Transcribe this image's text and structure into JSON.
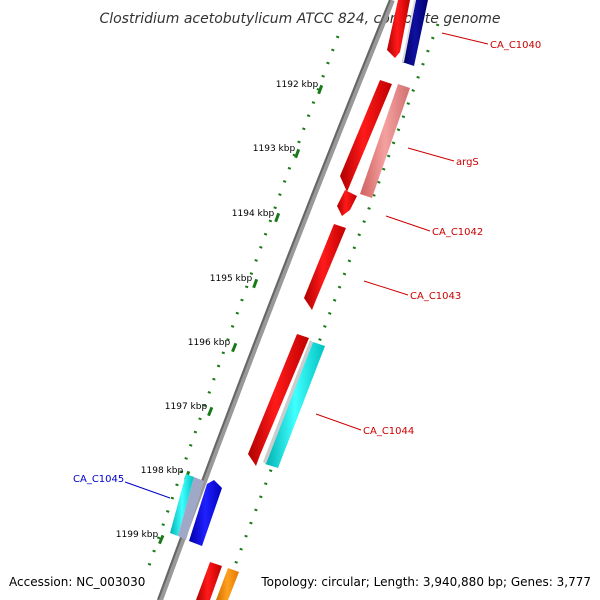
{
  "title": "Clostridium acetobutylicum ATCC 824, complete genome",
  "accession": "Accession: NC_003030",
  "topology": "Topology: circular; Length: 3,940,880 bp; Genes: 3,777",
  "ticks": [
    "1192 kbp",
    "1193 kbp",
    "1194 kbp",
    "1195 kbp",
    "1196 kbp",
    "1197 kbp",
    "1198 kbp",
    "1199 kbp"
  ],
  "genes": [
    {
      "label": "CA_C1040",
      "color": "#cc0000"
    },
    {
      "label": "argS",
      "color": "#cc0000"
    },
    {
      "label": "CA_C1042",
      "color": "#cc0000"
    },
    {
      "label": "CA_C1043",
      "color": "#cc0000"
    },
    {
      "label": "CA_C1044",
      "color": "#cc0000"
    },
    {
      "label": "CA_C1045",
      "color": "#0000cc"
    }
  ],
  "colors": {
    "backbone": "#888888",
    "forward_gene": "#ff0000",
    "pink_gene": "#f08080",
    "cyan_gene": "#00e5e5",
    "blue_gene": "#0000dd",
    "navy_gene": "#000080",
    "orange_gene": "#ff8c00",
    "ruler": "#1a7a1a"
  }
}
